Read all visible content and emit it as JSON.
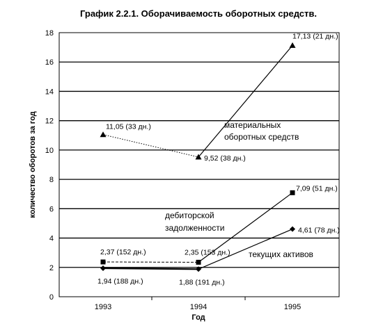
{
  "chart_data": {
    "type": "line",
    "title": "График 2.2.1.  Оборачиваемость оборотных средств.",
    "xlabel": "Год",
    "ylabel": "количество оборотов за год",
    "categories": [
      "1993",
      "1994",
      "1995"
    ],
    "ylim": [
      0,
      18
    ],
    "yticks": [
      0,
      2,
      4,
      6,
      8,
      10,
      12,
      14,
      16,
      18
    ],
    "grid": true,
    "legend": "none",
    "series": [
      {
        "key": "materials",
        "marker": "triangle",
        "color": "#000000",
        "values": [
          11.05,
          9.52,
          17.13
        ],
        "segment_styles": [
          "dotted",
          "solid"
        ],
        "labels": [
          "11,05 (33 дн.)",
          "9,52 (38 дн.)",
          "17,13 (21 дн.)"
        ],
        "annotation": [
          "материальных",
          "оборотных средств"
        ]
      },
      {
        "key": "receivables",
        "marker": "square",
        "color": "#000000",
        "values": [
          2.37,
          2.35,
          7.09
        ],
        "segment_styles": [
          "dashed",
          "solid"
        ],
        "labels": [
          "2,37 (152 дн.)",
          "2,35 (153 дн.)",
          "7,09 (51 дн.)"
        ],
        "annotation": [
          "дебиторской",
          "задолженности"
        ]
      },
      {
        "key": "current_assets",
        "marker": "diamond",
        "color": "#000000",
        "values": [
          1.94,
          1.88,
          4.61
        ],
        "segment_styles": [
          "solid-bold",
          "solid"
        ],
        "labels": [
          "1,94 (188 дн.)",
          "1,88 (191 дн.)",
          "4,61 (78 дн.)"
        ],
        "annotation": [
          "текущих активов"
        ]
      }
    ]
  }
}
